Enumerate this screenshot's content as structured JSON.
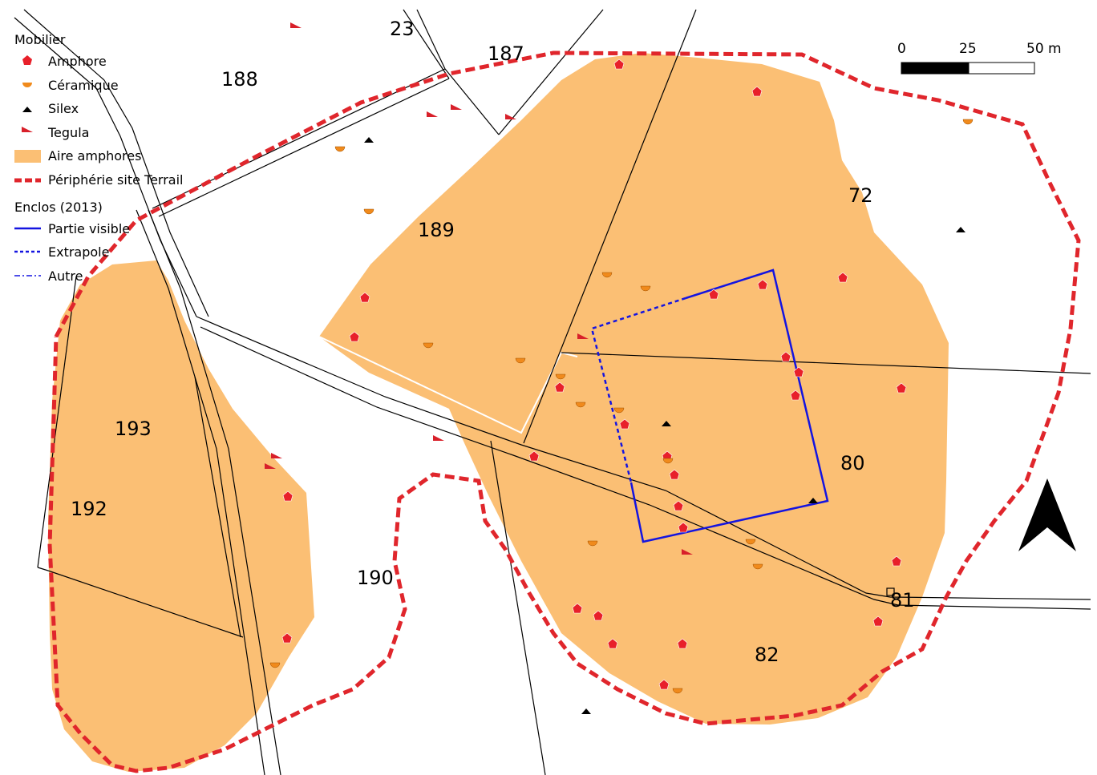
{
  "legend": {
    "title": "Mobilier",
    "items": {
      "amphore": "Amphore",
      "ceramique": "Céramique",
      "silex": "Silex",
      "tegula": "Tegula",
      "aire": "Aire amphores",
      "peripherie": "Périphérie site Terrail"
    },
    "enclos_title": "Enclos (2013)",
    "enclos_items": {
      "visible": "Partie visible",
      "extrapole": "Extrapole",
      "autre": "Autre"
    }
  },
  "scale": {
    "label_0": "0",
    "label_1": "25",
    "label_2": "50 m"
  },
  "parcels": [
    {
      "id": "23",
      "label": "23"
    },
    {
      "id": "187",
      "label": "187"
    },
    {
      "id": "188",
      "label": "188"
    },
    {
      "id": "189",
      "label": "189"
    },
    {
      "id": "72",
      "label": "72"
    },
    {
      "id": "193",
      "label": "193"
    },
    {
      "id": "192",
      "label": "192"
    },
    {
      "id": "190",
      "label": "190"
    },
    {
      "id": "80",
      "label": "80"
    },
    {
      "id": "81",
      "label": "81"
    },
    {
      "id": "82",
      "label": "82"
    }
  ],
  "colors": {
    "amphore": "#e8202a",
    "ceramique": "#f08a1c",
    "silex": "#000000",
    "tegula": "#d8202a",
    "aire": "#fbbf74",
    "peripherie": "#e0262c",
    "enclos": "#1414e0"
  },
  "icons": {
    "north_arrow": "north-arrow-icon"
  }
}
